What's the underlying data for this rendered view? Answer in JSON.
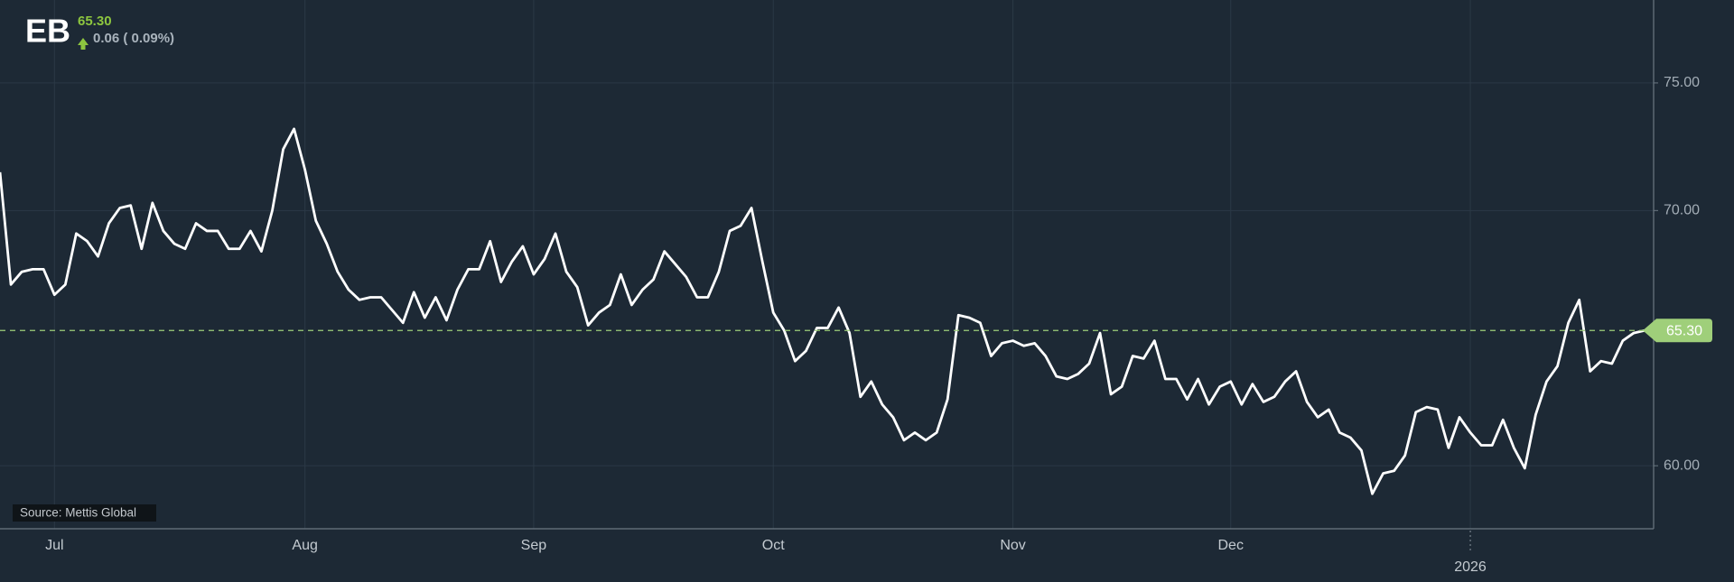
{
  "chart_data": {
    "type": "line",
    "title": "EB",
    "change": "0.06 ( 0.09%)",
    "source": "Source: Mettis Global",
    "reference_line": {
      "value": 65.3,
      "label": "65.30"
    },
    "categories": [
      null,
      null,
      null,
      null,
      null,
      "Jul",
      null,
      null,
      null,
      null,
      null,
      null,
      null,
      null,
      null,
      null,
      null,
      null,
      null,
      null,
      null,
      null,
      null,
      null,
      null,
      null,
      null,
      null,
      "Aug",
      null,
      null,
      null,
      null,
      null,
      null,
      null,
      null,
      null,
      null,
      null,
      null,
      null,
      null,
      null,
      null,
      null,
      null,
      null,
      null,
      "Sep",
      null,
      null,
      null,
      null,
      null,
      null,
      null,
      null,
      null,
      null,
      null,
      null,
      null,
      null,
      null,
      null,
      null,
      null,
      null,
      null,
      null,
      "Oct",
      null,
      null,
      null,
      null,
      null,
      null,
      null,
      null,
      null,
      null,
      null,
      null,
      null,
      null,
      null,
      null,
      null,
      null,
      null,
      null,
      null,
      "Nov",
      null,
      null,
      null,
      null,
      null,
      null,
      null,
      null,
      null,
      null,
      null,
      null,
      null,
      null,
      null,
      null,
      null,
      null,
      null,
      "Dec",
      null,
      null,
      null,
      null,
      null,
      null,
      null,
      null,
      null,
      null,
      null,
      null,
      null,
      null,
      null,
      null,
      null,
      null,
      null,
      null,
      null,
      "2026",
      null,
      null,
      null,
      null,
      null,
      null,
      null,
      null,
      null,
      null,
      null,
      null,
      null,
      null,
      null,
      null
    ],
    "series": [
      {
        "name": "EB",
        "color": "#ffffff",
        "values": [
          71.5,
          67.1,
          67.6,
          67.7,
          67.7,
          66.7,
          67.1,
          69.1,
          68.8,
          68.2,
          69.5,
          70.1,
          70.2,
          68.5,
          70.3,
          69.2,
          68.7,
          68.5,
          69.5,
          69.2,
          69.2,
          68.5,
          68.5,
          69.2,
          68.4,
          70.0,
          72.4,
          73.2,
          71.6,
          69.6,
          68.7,
          67.6,
          66.9,
          66.5,
          66.6,
          66.6,
          66.1,
          65.6,
          66.8,
          65.8,
          66.6,
          65.7,
          66.9,
          67.7,
          67.7,
          68.8,
          67.2,
          68.0,
          68.6,
          67.5,
          68.1,
          69.1,
          67.6,
          67.0,
          65.5,
          66.0,
          66.3,
          67.5,
          66.3,
          66.9,
          67.3,
          68.4,
          67.9,
          67.4,
          66.6,
          66.6,
          67.6,
          69.2,
          69.4,
          70.1,
          68.0,
          66.0,
          65.3,
          64.1,
          64.5,
          65.4,
          65.4,
          66.2,
          65.2,
          62.7,
          63.3,
          62.4,
          61.9,
          61.0,
          61.3,
          61.0,
          61.3,
          62.6,
          65.9,
          65.8,
          65.6,
          64.3,
          64.8,
          64.9,
          64.7,
          64.8,
          64.3,
          63.5,
          63.4,
          63.6,
          64.0,
          65.2,
          62.8,
          63.1,
          64.3,
          64.2,
          64.9,
          63.4,
          63.4,
          62.6,
          63.4,
          62.4,
          63.1,
          63.3,
          62.4,
          63.2,
          62.5,
          62.7,
          63.3,
          63.7,
          62.5,
          61.9,
          62.2,
          61.3,
          61.1,
          60.6,
          58.9,
          59.7,
          59.8,
          60.4,
          62.1,
          62.3,
          62.2,
          60.7,
          61.9,
          61.3,
          60.8,
          60.8,
          61.8,
          60.7,
          59.9,
          62.0,
          63.3,
          63.9,
          65.6,
          66.5,
          63.7,
          64.1,
          64.0,
          64.9,
          65.2,
          65.3
        ]
      }
    ],
    "ylim": [
      57.53,
      78.25
    ],
    "yticks": [
      {
        "value": 60,
        "label": "60.00"
      },
      {
        "value": 70,
        "label": "70.00"
      },
      {
        "value": 75,
        "label": "75.00"
      }
    ],
    "grid": true,
    "reference_color": "#9fcf7a"
  }
}
